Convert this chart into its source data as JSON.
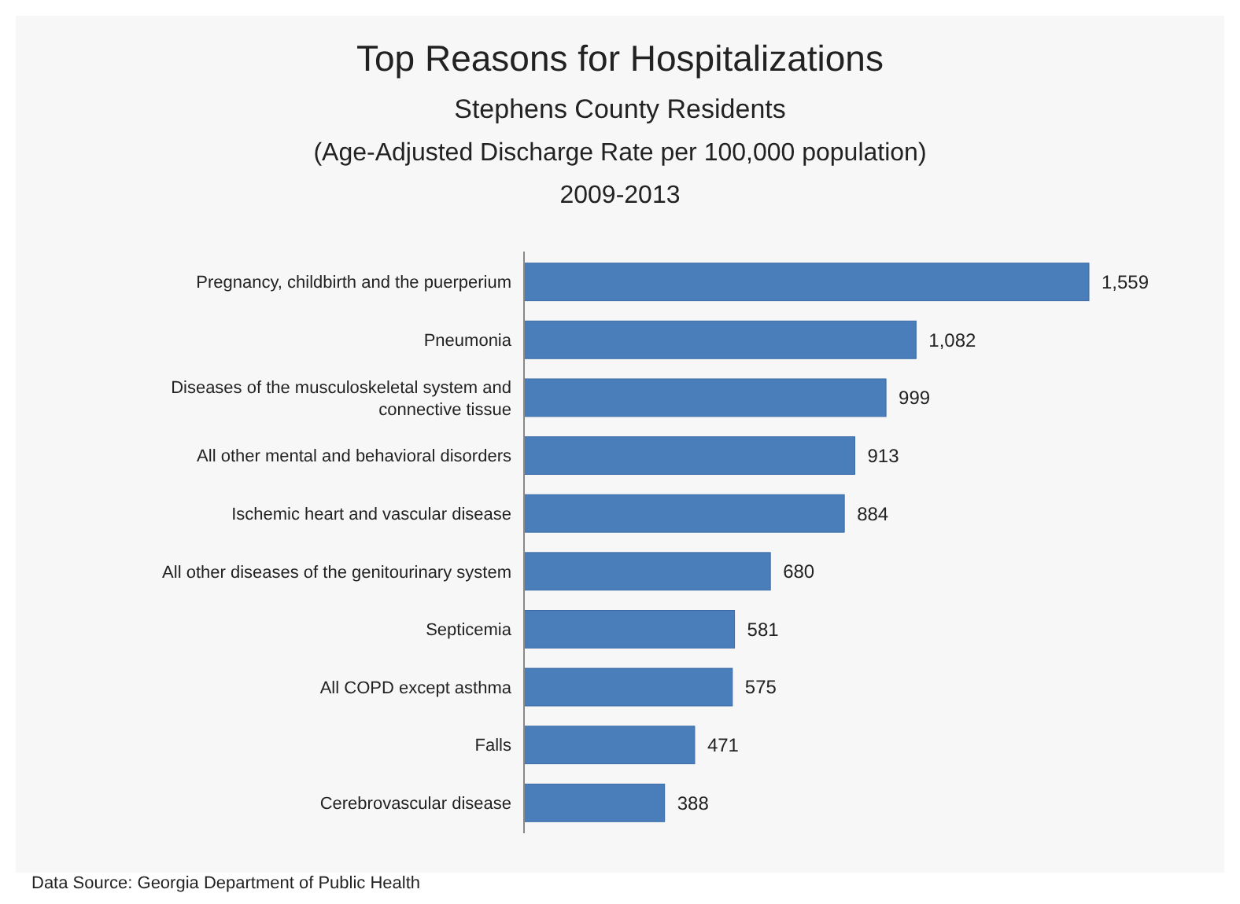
{
  "chart_data": {
    "type": "bar",
    "orientation": "horizontal",
    "title": "Top Reasons for Hospitalizations",
    "subtitle": "Stephens County Residents\n(Age-Adjusted Discharge Rate per 100,000 population)\n2009-2013",
    "categories": [
      "Pregnancy, childbirth and the puerperium",
      "Pneumonia",
      "Diseases of the musculoskeletal system and connective tissue",
      "All other mental and behavioral disorders",
      "Ischemic heart and vascular disease",
      "All other diseases of the genitourinary system",
      "Septicemia",
      "All COPD except asthma",
      "Falls",
      "Cerebrovascular disease"
    ],
    "values": [
      1559,
      1082,
      999,
      913,
      884,
      680,
      581,
      575,
      471,
      388
    ],
    "value_labels": [
      "1,559",
      "1,082",
      "999",
      "913",
      "884",
      "680",
      "581",
      "575",
      "471",
      "388"
    ],
    "color": "#4a7ebb",
    "annotations": [
      "Data Source: Georgia Department of Public Health"
    ]
  }
}
